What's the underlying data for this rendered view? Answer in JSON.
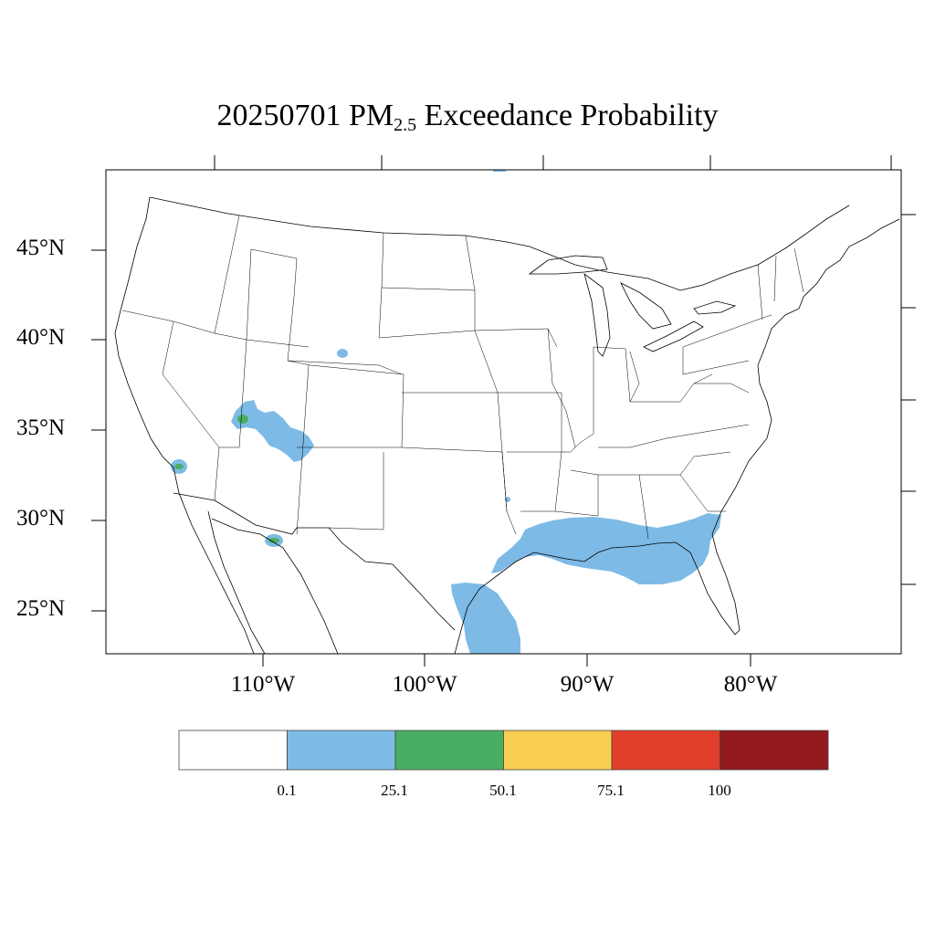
{
  "title": {
    "date": "20250701",
    "pollutant": "PM",
    "pollutant_subscript": "2.5",
    "suffix": "Exceedance Probability"
  },
  "lat_labels": [
    "45°N",
    "40°N",
    "35°N",
    "30°N",
    "25°N"
  ],
  "lon_labels": [
    "110°W",
    "100°W",
    "90°W",
    "80°W"
  ],
  "colorbar": {
    "colors": [
      "#ffffff",
      "#7dbbe6",
      "#4aae62",
      "#f8ce52",
      "#e23f2a",
      "#921a1d"
    ],
    "tick_labels": [
      "0.1",
      "25.1",
      "50.1",
      "75.1",
      "100"
    ]
  },
  "probability_regions": [
    {
      "name": "gulf-coast",
      "level": "0.1-25.1"
    },
    {
      "name": "south-texas",
      "level": "0.1-25.1"
    },
    {
      "name": "four-corners",
      "level": "0.1-50.1"
    },
    {
      "name": "southern-california",
      "level": "0.1-50.1"
    },
    {
      "name": "sonora",
      "level": "0.1-50.1"
    },
    {
      "name": "colorado",
      "level": "0.1-25.1"
    }
  ]
}
